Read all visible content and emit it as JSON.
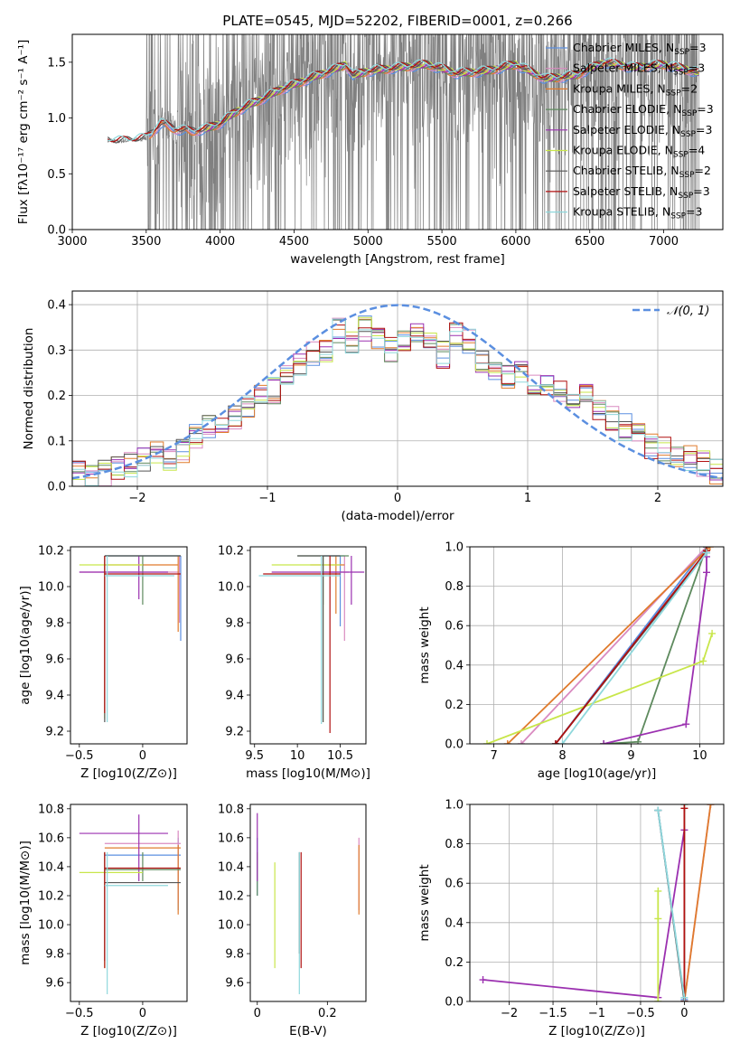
{
  "colors": {
    "chabrier_miles": "#5b8fe0",
    "salpeter_miles": "#d98ac0",
    "kroupa_miles": "#e07b2c",
    "chabrier_elodie": "#5e8a5e",
    "salpeter_elodie": "#9b30b0",
    "kroupa_elodie": "#c8e64a",
    "chabrier_stelib": "#555555",
    "salpeter_stelib": "#b01010",
    "kroupa_stelib": "#8fd8dc",
    "data": "#808080",
    "gaussian": "#5b8fe0"
  },
  "chart_data": [
    {
      "id": "spectrum",
      "type": "line",
      "title": "PLATE=0545, MJD=52202, FIBERID=0001, z=0.266",
      "xlabel": "wavelength [Angstrom, rest frame]",
      "ylabel": "Flux [fλ10⁻¹⁷ erg cm⁻² s⁻¹ A⁻¹]",
      "xlim": [
        3000,
        7400
      ],
      "ylim": [
        0,
        1.75
      ],
      "xticks": [
        3000,
        3500,
        4000,
        4500,
        5000,
        5500,
        6000,
        6500,
        7000
      ],
      "yticks": [
        0.0,
        0.5,
        1.0,
        1.5
      ],
      "grid": false,
      "legend_position": "upper right",
      "legend": [
        "Chabrier MILES, N_SSP=3",
        "Salpeter MILES, N_SSP=3",
        "Kroupa MILES, N_SSP=2",
        "Chabrier ELODIE, N_SSP=3",
        "Salpeter ELODIE, N_SSP=3",
        "Kroupa ELODIE, N_SSP=4",
        "Chabrier STELIB, N_SSP=2",
        "Salpeter STELIB, N_SSP=3",
        "Kroupa STELIB, N_SSP=3"
      ],
      "model_continuum": {
        "x": [
          3240,
          3300,
          3400,
          3500,
          3600,
          3700,
          3800,
          3900,
          4000,
          4100,
          4200,
          4300,
          4400,
          4500,
          4600,
          4700,
          4800,
          4850,
          4900,
          5000,
          5200,
          5400,
          5600,
          5800,
          6000,
          6200,
          6400,
          6600,
          6800,
          7000,
          7200,
          7240
        ],
        "y": [
          0.8,
          0.79,
          0.8,
          0.82,
          0.95,
          0.9,
          0.88,
          0.9,
          0.95,
          1.05,
          1.12,
          1.18,
          1.25,
          1.3,
          1.35,
          1.4,
          1.45,
          1.48,
          1.38,
          1.42,
          1.45,
          1.48,
          1.4,
          1.42,
          1.48,
          1.35,
          1.38,
          1.5,
          1.45,
          1.48,
          1.42,
          1.4
        ]
      }
    },
    {
      "id": "residuals",
      "type": "bar",
      "xlabel": "(data-model)/error",
      "ylabel": "Normed distribution",
      "xlim": [
        -2.5,
        2.5
      ],
      "ylim": [
        0,
        0.43
      ],
      "xticks": [
        -2,
        -1,
        0,
        1,
        2
      ],
      "yticks": [
        0.0,
        0.1,
        0.2,
        0.3,
        0.4
      ],
      "grid": true,
      "legend_position": "upper right",
      "legend": [
        "𝒩(0, 1)"
      ],
      "bin_edges_range": [
        -2.5,
        2.5
      ],
      "n_bins": 50,
      "values": [
        0.04,
        0.02,
        0.03,
        0.04,
        0.05,
        0.06,
        0.07,
        0.05,
        0.08,
        0.11,
        0.13,
        0.13,
        0.15,
        0.18,
        0.2,
        0.21,
        0.25,
        0.27,
        0.29,
        0.3,
        0.34,
        0.32,
        0.35,
        0.33,
        0.3,
        0.32,
        0.34,
        0.31,
        0.29,
        0.33,
        0.32,
        0.28,
        0.26,
        0.24,
        0.25,
        0.22,
        0.23,
        0.21,
        0.19,
        0.2,
        0.17,
        0.15,
        0.13,
        0.12,
        0.09,
        0.08,
        0.07,
        0.06,
        0.05,
        0.03
      ]
    },
    {
      "id": "age_vs_Z",
      "type": "scatter",
      "xlabel": "Z [log10(Z/Z⊙)]",
      "ylabel": "age  [log10(age/yr)]",
      "xlim": [
        -0.57,
        0.35
      ],
      "ylim": [
        9.13,
        10.22
      ],
      "xticks": [
        -0.5,
        0.0
      ],
      "yticks": [
        9.2,
        9.4,
        9.6,
        9.8,
        10.0,
        10.2
      ],
      "grid": false
    },
    {
      "id": "age_vs_mass",
      "type": "scatter",
      "xlabel": "mass [log10(M/M⊙)]",
      "ylabel": "",
      "xlim": [
        9.45,
        10.8
      ],
      "ylim": [
        9.13,
        10.22
      ],
      "xticks": [
        9.5,
        10.0,
        10.5
      ],
      "yticks": [
        9.2,
        9.4,
        9.6,
        9.8,
        10.0,
        10.2
      ],
      "grid": false
    },
    {
      "id": "weight_vs_age",
      "type": "line",
      "xlabel": "age  [log10(age/yr)]",
      "ylabel": "mass weight",
      "xlim": [
        6.65,
        10.35
      ],
      "ylim": [
        0,
        1.0
      ],
      "xticks": [
        7,
        8,
        9,
        10
      ],
      "yticks": [
        0.0,
        0.2,
        0.4,
        0.6,
        0.8,
        1.0
      ],
      "grid": true
    },
    {
      "id": "mass_vs_Z",
      "type": "scatter",
      "xlabel": "Z [log10(Z/Z⊙)]",
      "ylabel": "mass [log10(M/M⊙)]",
      "xlim": [
        -0.57,
        0.35
      ],
      "ylim": [
        9.47,
        10.83
      ],
      "xticks": [
        -0.5,
        0.0
      ],
      "yticks": [
        9.6,
        9.8,
        10.0,
        10.2,
        10.4,
        10.6,
        10.8
      ],
      "grid": false
    },
    {
      "id": "mass_vs_ebv",
      "type": "scatter",
      "xlabel": "E(B-V)",
      "ylabel": "",
      "xlim": [
        -0.02,
        0.31
      ],
      "ylim": [
        9.47,
        10.83
      ],
      "xticks": [
        0.0,
        0.2
      ],
      "yticks": [
        9.6,
        9.8,
        10.0,
        10.2,
        10.4,
        10.6,
        10.8
      ],
      "grid": false
    },
    {
      "id": "weight_vs_Z",
      "type": "line",
      "xlabel": "Z [log10(Z/Z⊙)]",
      "ylabel": "mass weight",
      "xlim": [
        -2.45,
        0.45
      ],
      "ylim": [
        0,
        1.0
      ],
      "xticks": [
        -2.0,
        -1.5,
        -1.0,
        -0.5,
        0.0
      ],
      "yticks": [
        0.0,
        0.2,
        0.4,
        0.6,
        0.8,
        1.0
      ],
      "grid": true
    }
  ]
}
